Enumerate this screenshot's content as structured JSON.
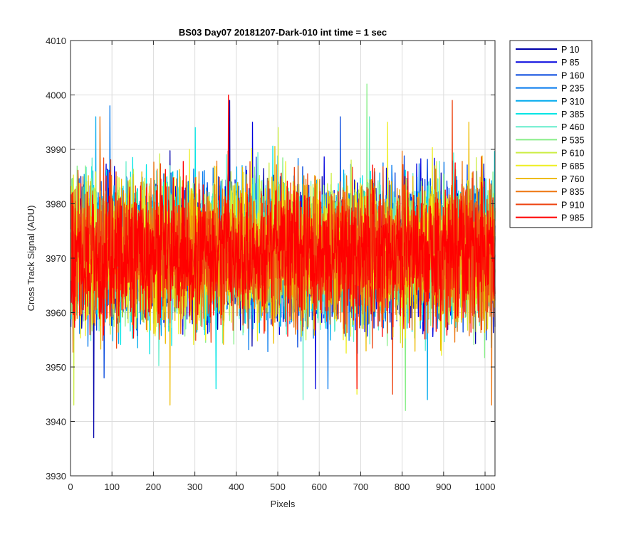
{
  "chart_data": {
    "type": "line",
    "title": "BS03 Day07 20181207-Dark-010 int time = 1 sec",
    "xlabel": "Pixels",
    "ylabel": "Cross Track Signal (ADU)",
    "xlim": [
      0,
      1024
    ],
    "ylim": [
      3930,
      4010
    ],
    "x_ticks": [
      0,
      100,
      200,
      300,
      400,
      500,
      600,
      700,
      800,
      900,
      1000
    ],
    "y_ticks": [
      3930,
      3940,
      3950,
      3960,
      3970,
      3980,
      3990,
      4000,
      4010
    ],
    "x_tick_labels": [
      "0",
      "100",
      "200",
      "300",
      "400",
      "500",
      "600",
      "700",
      "800",
      "900",
      "1000"
    ],
    "y_tick_labels": [
      "3930",
      "3940",
      "3950",
      "3960",
      "3970",
      "3980",
      "3990",
      "4000",
      "4010"
    ],
    "grid": true,
    "legend_position": "outside-top-right",
    "series": [
      {
        "name": "P 10",
        "color": "#0000aa",
        "mean": 3971,
        "min": 3937,
        "max": 3999,
        "low_at": 55,
        "high_at": 383
      },
      {
        "name": "P 85",
        "color": "#0000dd",
        "mean": 3971,
        "min": 3946,
        "max": 3995,
        "low_at": 590,
        "high_at": 438
      },
      {
        "name": "P 160",
        "color": "#0044dd",
        "mean": 3971,
        "min": 3948,
        "max": 3996,
        "low_at": 80,
        "high_at": 650
      },
      {
        "name": "P 235",
        "color": "#0077ee",
        "mean": 3971,
        "min": 3946,
        "max": 3998,
        "low_at": 620,
        "high_at": 94
      },
      {
        "name": "P 310",
        "color": "#00aaee",
        "mean": 3971,
        "min": 3944,
        "max": 3996,
        "low_at": 860,
        "high_at": 60
      },
      {
        "name": "P 385",
        "color": "#00e5e5",
        "mean": 3971,
        "min": 3946,
        "max": 3994,
        "low_at": 350,
        "high_at": 300
      },
      {
        "name": "P 460",
        "color": "#66eecc",
        "mean": 3971,
        "min": 3944,
        "max": 3996,
        "low_at": 560,
        "high_at": 720
      },
      {
        "name": "P 535",
        "color": "#88ee88",
        "mean": 3971,
        "min": 3942,
        "max": 4002,
        "low_at": 807,
        "high_at": 714
      },
      {
        "name": "P 610",
        "color": "#ccee44",
        "mean": 3971,
        "min": 3943,
        "max": 3994,
        "low_at": 7,
        "high_at": 500
      },
      {
        "name": "P 685",
        "color": "#eeee22",
        "mean": 3971,
        "min": 3945,
        "max": 3995,
        "low_at": 690,
        "high_at": 764
      },
      {
        "name": "P 760",
        "color": "#eebb00",
        "mean": 3971,
        "min": 3943,
        "max": 3995,
        "low_at": 239,
        "high_at": 960
      },
      {
        "name": "P 835",
        "color": "#ee7711",
        "mean": 3971,
        "min": 3943,
        "max": 3996,
        "low_at": 1015,
        "high_at": 70
      },
      {
        "name": "P 910",
        "color": "#ee4411",
        "mean": 3971,
        "min": 3945,
        "max": 3999,
        "low_at": 776,
        "high_at": 920
      },
      {
        "name": "P 985",
        "color": "#ff0000",
        "mean": 3971,
        "min": 3946,
        "max": 4000,
        "low_at": 690,
        "high_at": 380
      }
    ]
  }
}
